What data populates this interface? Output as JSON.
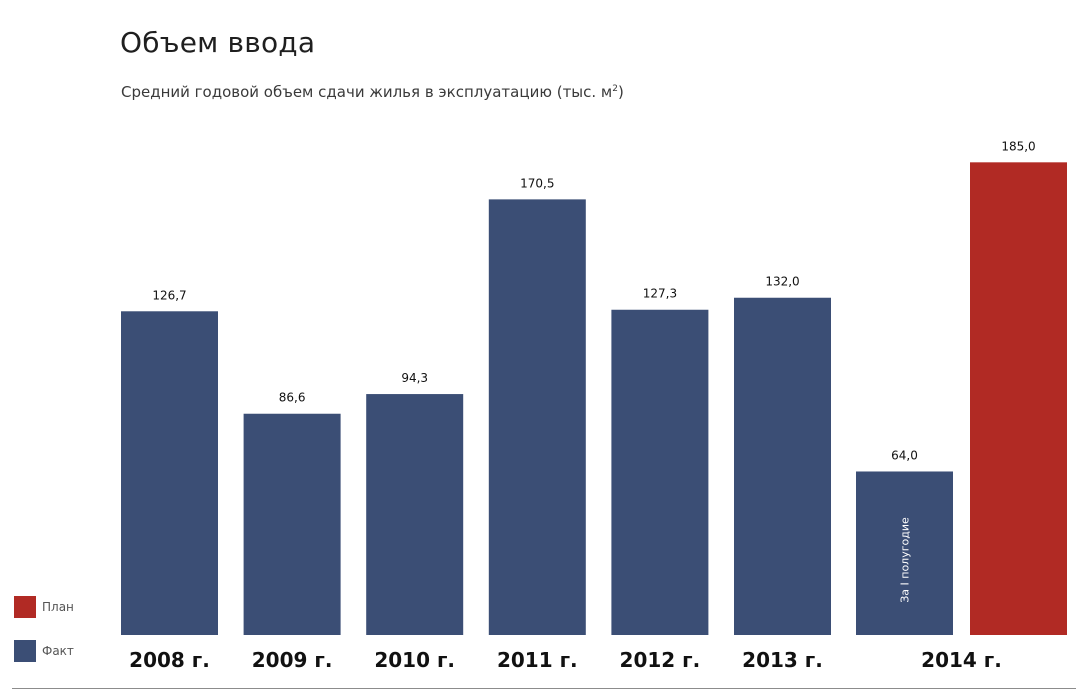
{
  "title": "Объем ввода",
  "subtitle": "Средний годовой объем сдачи жилья в эксплуатацию (тыс. м",
  "subtitle_sup": "2",
  "subtitle_tail": ")",
  "colors": {
    "fact": "#3b4e75",
    "plan": "#b12a24"
  },
  "legend": {
    "plan_label": "План",
    "fact_label": "Факт"
  },
  "chart_data": {
    "type": "bar",
    "categories": [
      "2008 г.",
      "2009 г.",
      "2010 г.",
      "2011 г.",
      "2012 г.",
      "2013 г.",
      "2014 г."
    ],
    "series": [
      {
        "name": "Факт",
        "values": [
          126.7,
          86.6,
          94.3,
          170.5,
          127.3,
          132.0,
          64.0
        ],
        "labels": [
          "126,7",
          "86,6",
          "94,3",
          "170,5",
          "127,3",
          "132,0",
          "64,0"
        ]
      },
      {
        "name": "План",
        "values": [
          null,
          null,
          null,
          null,
          null,
          null,
          185.0
        ],
        "labels": [
          "",
          "",
          "",
          "",
          "",
          "",
          "185,0"
        ]
      }
    ],
    "annotations": [
      {
        "category": "2014 г.",
        "series": "Факт",
        "text": "За I полугодие"
      }
    ],
    "xlabel": "",
    "ylabel": "",
    "ylim": [
      0,
      185
    ],
    "grid": false,
    "legend_position": "bottom-left"
  }
}
